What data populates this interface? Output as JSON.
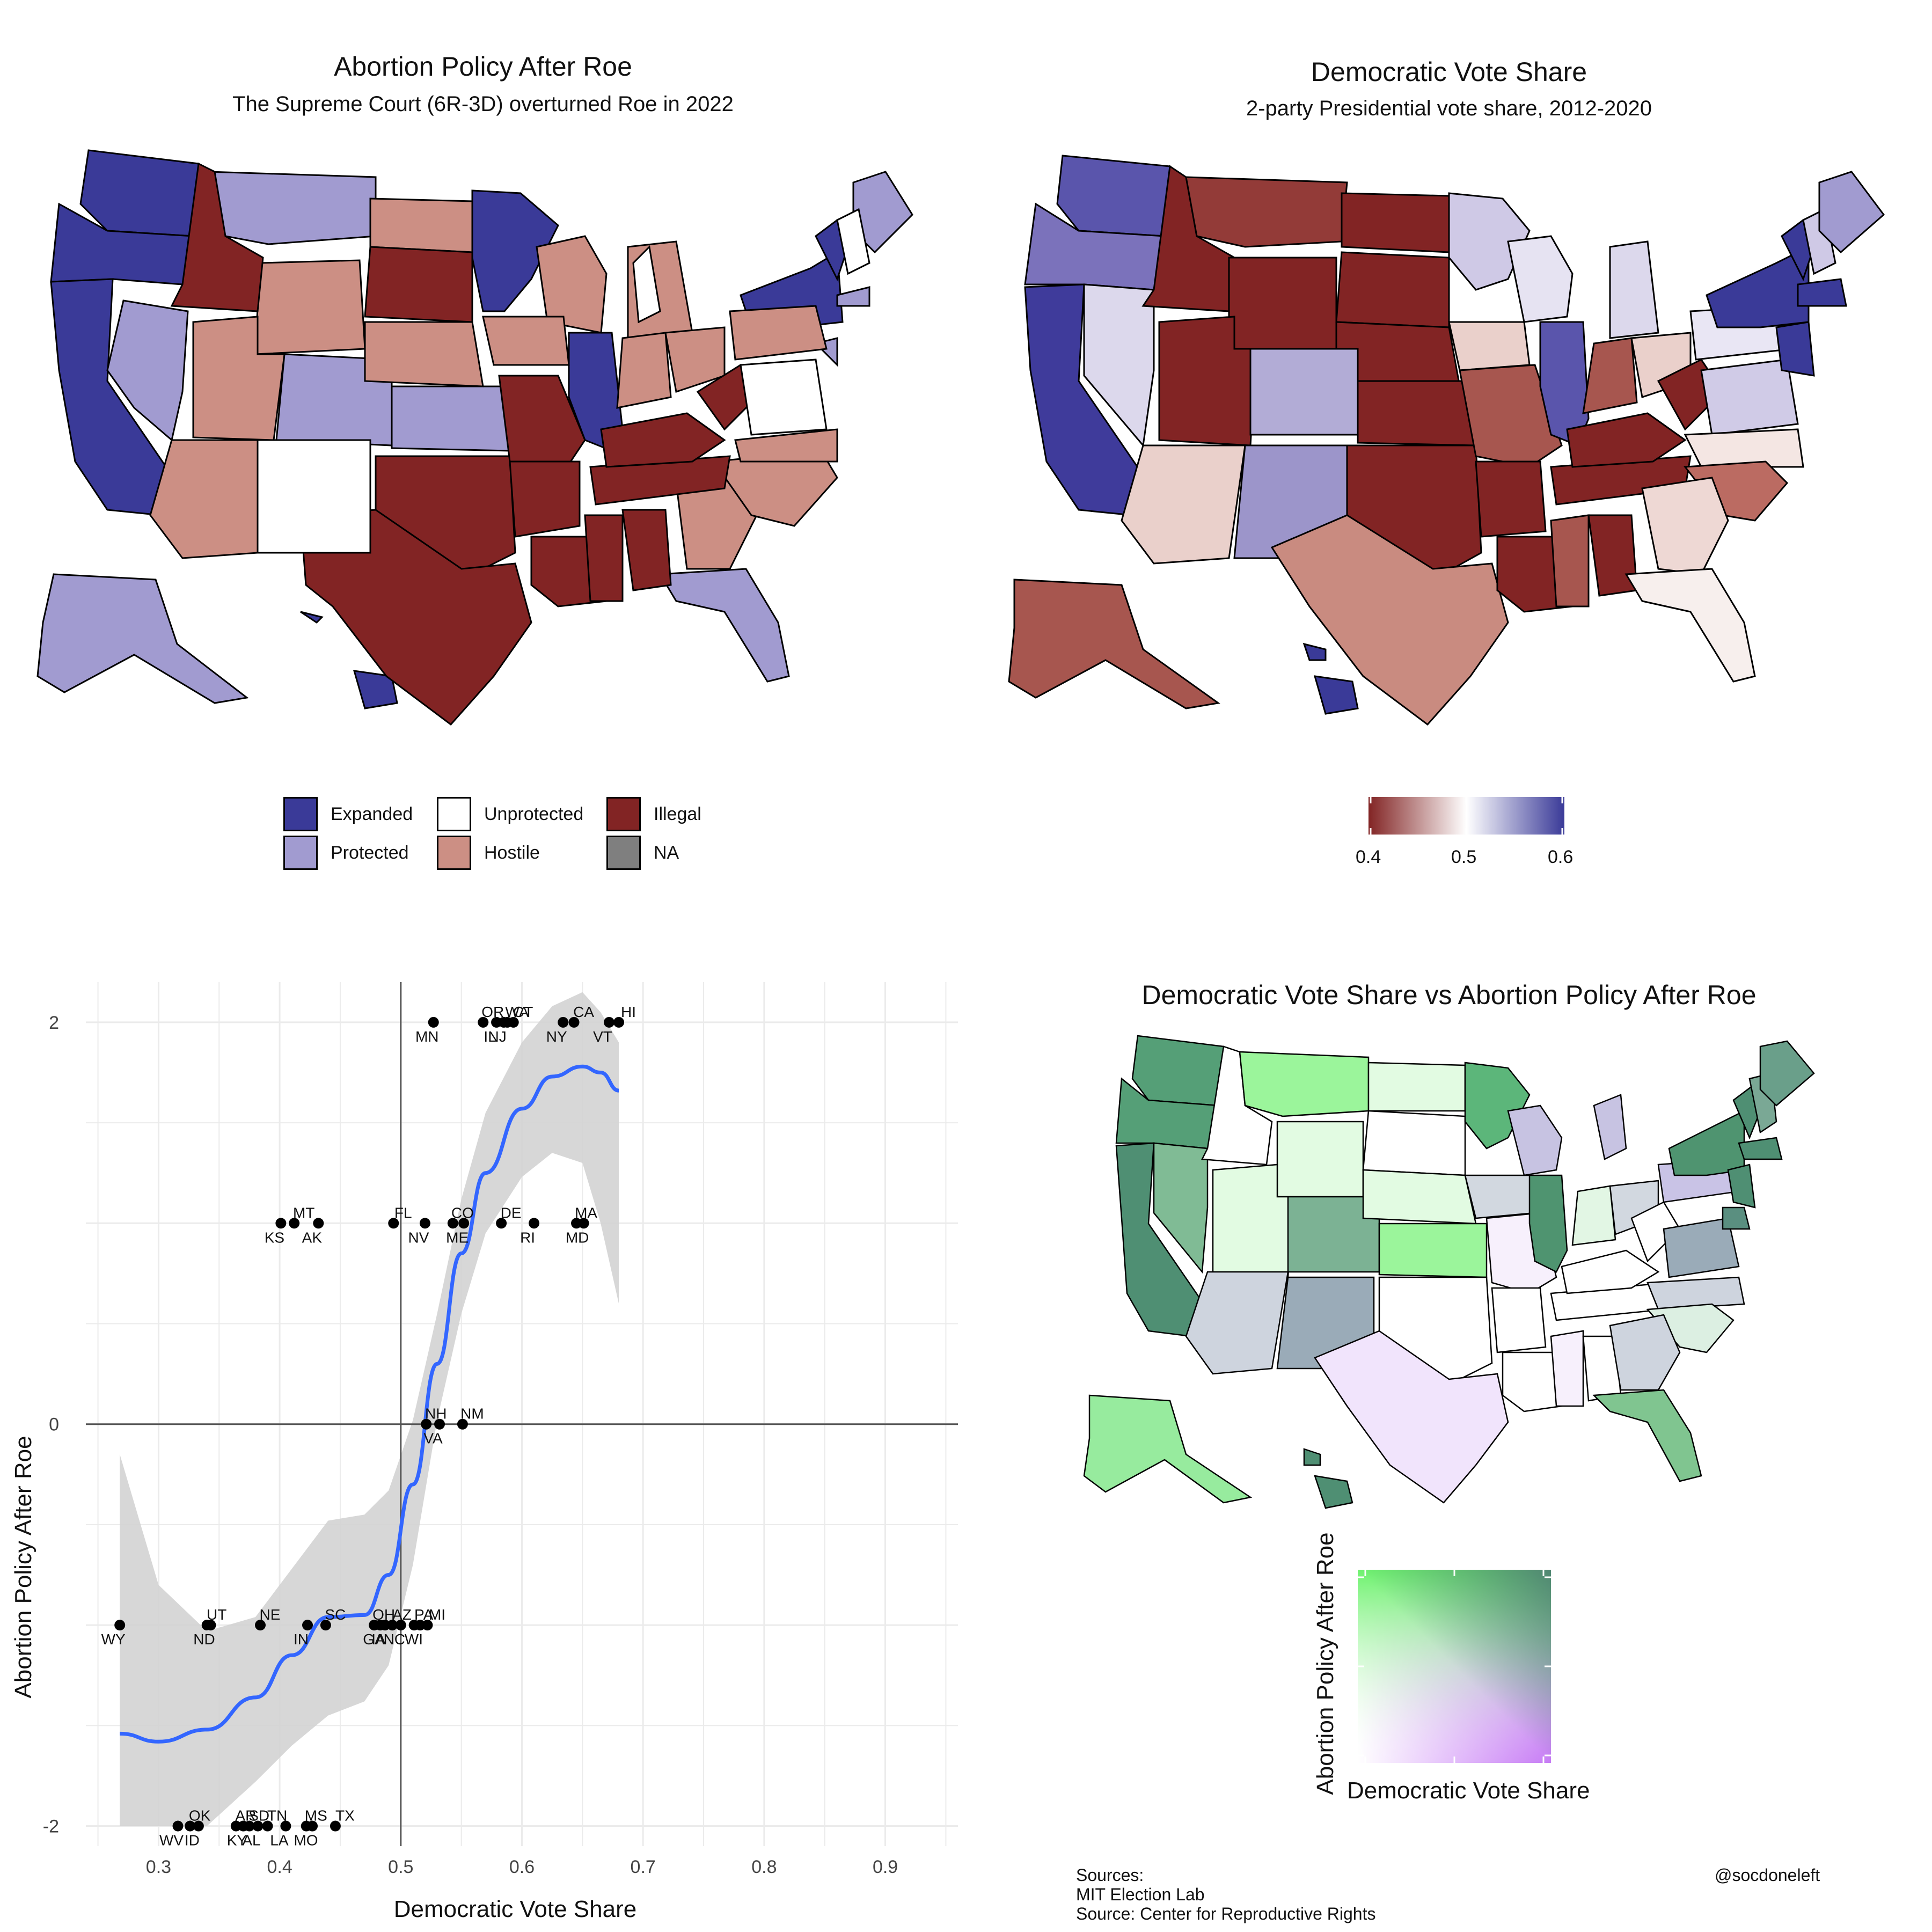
{
  "map1": {
    "title": "Abortion Policy After Roe",
    "subtitle": "The Supreme Court (6R-3D) overturned Roe in 2022",
    "legend": [
      {
        "label": "Expanded",
        "color": "#3a3a98"
      },
      {
        "label": "Unprotected",
        "color": "#ffffff"
      },
      {
        "label": "Illegal",
        "color": "#822424"
      },
      {
        "label": "Protected",
        "color": "#a19bd0"
      },
      {
        "label": "Hostile",
        "color": "#cc8f84"
      },
      {
        "label": "NA",
        "color": "#7f7f7f"
      }
    ]
  },
  "map2": {
    "title": "Democratic Vote Share",
    "subtitle": "2-party Presidential vote share, 2012-2020",
    "colorbar": {
      "ticks": [
        "0.4",
        "0.5",
        "0.6"
      ],
      "low": "#822424",
      "mid": "#ffffff",
      "high": "#3a3a98"
    }
  },
  "chart_data": {
    "type": "scatter",
    "xlabel": "Democratic Vote Share",
    "ylabel": "Abortion Policy After Roe",
    "xlim": [
      0.24,
      0.96
    ],
    "ylim": [
      -2.1,
      2.2
    ],
    "xticks": [
      "0.3",
      "0.4",
      "0.5",
      "0.6",
      "0.7",
      "0.8",
      "0.9"
    ],
    "xtick_values": [
      0.3,
      0.4,
      0.5,
      0.6,
      0.7,
      0.8,
      0.9
    ],
    "yticks": [
      "-2",
      "0",
      "2"
    ],
    "ytick_values": [
      -2,
      0,
      2
    ],
    "smooth_color": "#3366ff",
    "points": [
      {
        "label": "MN",
        "x": 0.527,
        "y": 2
      },
      {
        "label": "OR",
        "x": 0.568,
        "y": 2
      },
      {
        "label": "IL",
        "x": 0.579,
        "y": 2
      },
      {
        "label": "WA",
        "x": 0.588,
        "y": 2
      },
      {
        "label": "NJ",
        "x": 0.585,
        "y": 2
      },
      {
        "label": "CT",
        "x": 0.593,
        "y": 2
      },
      {
        "label": "NY",
        "x": 0.634,
        "y": 2
      },
      {
        "label": "CA",
        "x": 0.643,
        "y": 2
      },
      {
        "label": "VT",
        "x": 0.672,
        "y": 2
      },
      {
        "label": "HI",
        "x": 0.68,
        "y": 2
      },
      {
        "label": "KS",
        "x": 0.401,
        "y": 1
      },
      {
        "label": "MT",
        "x": 0.412,
        "y": 1
      },
      {
        "label": "AK",
        "x": 0.432,
        "y": 1
      },
      {
        "label": "FL",
        "x": 0.494,
        "y": 1
      },
      {
        "label": "NV",
        "x": 0.52,
        "y": 1
      },
      {
        "label": "CO",
        "x": 0.543,
        "y": 1
      },
      {
        "label": "ME",
        "x": 0.552,
        "y": 1
      },
      {
        "label": "DE",
        "x": 0.583,
        "y": 1
      },
      {
        "label": "RI",
        "x": 0.61,
        "y": 1
      },
      {
        "label": "MA",
        "x": 0.645,
        "y": 1
      },
      {
        "label": "MD",
        "x": 0.651,
        "y": 1
      },
      {
        "label": "NH",
        "x": 0.521,
        "y": 0
      },
      {
        "label": "VA",
        "x": 0.532,
        "y": 0
      },
      {
        "label": "NM",
        "x": 0.551,
        "y": 0
      },
      {
        "label": "WY",
        "x": 0.268,
        "y": -1
      },
      {
        "label": "UT",
        "x": 0.34,
        "y": -1
      },
      {
        "label": "ND",
        "x": 0.343,
        "y": -1
      },
      {
        "label": "NE",
        "x": 0.384,
        "y": -1
      },
      {
        "label": "IN",
        "x": 0.423,
        "y": -1
      },
      {
        "label": "SC",
        "x": 0.438,
        "y": -1
      },
      {
        "label": "GA",
        "x": 0.483,
        "y": -1
      },
      {
        "label": "OH",
        "x": 0.478,
        "y": -1
      },
      {
        "label": "IA",
        "x": 0.487,
        "y": -1
      },
      {
        "label": "AZ",
        "x": 0.493,
        "y": -1
      },
      {
        "label": "NC",
        "x": 0.5,
        "y": -1
      },
      {
        "label": "PA",
        "x": 0.511,
        "y": -1
      },
      {
        "label": "WI",
        "x": 0.516,
        "y": -1
      },
      {
        "label": "MI",
        "x": 0.522,
        "y": -1
      },
      {
        "label": "WV",
        "x": 0.316,
        "y": -2
      },
      {
        "label": "OK",
        "x": 0.326,
        "y": -2
      },
      {
        "label": "ID",
        "x": 0.333,
        "y": -2
      },
      {
        "label": "AR",
        "x": 0.364,
        "y": -2
      },
      {
        "label": "KY",
        "x": 0.37,
        "y": -2
      },
      {
        "label": "SD",
        "x": 0.375,
        "y": -2
      },
      {
        "label": "AL",
        "x": 0.382,
        "y": -2
      },
      {
        "label": "TN",
        "x": 0.39,
        "y": -2
      },
      {
        "label": "LA",
        "x": 0.405,
        "y": -2
      },
      {
        "label": "MS",
        "x": 0.422,
        "y": -2
      },
      {
        "label": "MO",
        "x": 0.427,
        "y": -2
      },
      {
        "label": "TX",
        "x": 0.446,
        "y": -2
      }
    ],
    "smooth_curve": [
      {
        "x": 0.268,
        "y": -1.54
      },
      {
        "x": 0.3,
        "y": -1.58
      },
      {
        "x": 0.34,
        "y": -1.52
      },
      {
        "x": 0.38,
        "y": -1.36
      },
      {
        "x": 0.41,
        "y": -1.15
      },
      {
        "x": 0.44,
        "y": -0.96
      },
      {
        "x": 0.47,
        "y": -0.95
      },
      {
        "x": 0.49,
        "y": -0.75
      },
      {
        "x": 0.51,
        "y": -0.3
      },
      {
        "x": 0.53,
        "y": 0.3
      },
      {
        "x": 0.55,
        "y": 0.85
      },
      {
        "x": 0.57,
        "y": 1.25
      },
      {
        "x": 0.6,
        "y": 1.57
      },
      {
        "x": 0.625,
        "y": 1.73
      },
      {
        "x": 0.65,
        "y": 1.78
      },
      {
        "x": 0.665,
        "y": 1.75
      },
      {
        "x": 0.68,
        "y": 1.66
      }
    ],
    "band_upper": [
      {
        "x": 0.268,
        "y": -0.15
      },
      {
        "x": 0.3,
        "y": -0.8
      },
      {
        "x": 0.34,
        "y": -1.03
      },
      {
        "x": 0.38,
        "y": -0.96
      },
      {
        "x": 0.41,
        "y": -0.72
      },
      {
        "x": 0.44,
        "y": -0.48
      },
      {
        "x": 0.47,
        "y": -0.45
      },
      {
        "x": 0.49,
        "y": -0.33
      },
      {
        "x": 0.51,
        "y": 0.02
      },
      {
        "x": 0.53,
        "y": 0.55
      },
      {
        "x": 0.55,
        "y": 1.12
      },
      {
        "x": 0.57,
        "y": 1.55
      },
      {
        "x": 0.6,
        "y": 1.9
      },
      {
        "x": 0.625,
        "y": 2.08
      },
      {
        "x": 0.65,
        "y": 2.15
      },
      {
        "x": 0.665,
        "y": 2.05
      },
      {
        "x": 0.68,
        "y": 1.9
      }
    ],
    "band_lower": [
      {
        "x": 0.268,
        "y": -2.0
      },
      {
        "x": 0.3,
        "y": -2.0
      },
      {
        "x": 0.34,
        "y": -2.0
      },
      {
        "x": 0.38,
        "y": -1.78
      },
      {
        "x": 0.41,
        "y": -1.6
      },
      {
        "x": 0.44,
        "y": -1.45
      },
      {
        "x": 0.47,
        "y": -1.38
      },
      {
        "x": 0.49,
        "y": -1.2
      },
      {
        "x": 0.51,
        "y": -0.7
      },
      {
        "x": 0.53,
        "y": 0.02
      },
      {
        "x": 0.55,
        "y": 0.55
      },
      {
        "x": 0.57,
        "y": 0.95
      },
      {
        "x": 0.6,
        "y": 1.23
      },
      {
        "x": 0.625,
        "y": 1.35
      },
      {
        "x": 0.65,
        "y": 1.3
      },
      {
        "x": 0.665,
        "y": 1.0
      },
      {
        "x": 0.68,
        "y": 0.6
      }
    ]
  },
  "map3": {
    "title": "Democratic Vote Share vs Abortion Policy After Roe",
    "legend_xlabel": "Democratic Vote Share",
    "legend_ylabel": "Abortion Policy After Roe"
  },
  "footer": {
    "sources": "Sources:",
    "source1": "MIT Election Lab",
    "source2": "Source: Center for Reproductive Rights",
    "handle": "@socdoneleft"
  }
}
